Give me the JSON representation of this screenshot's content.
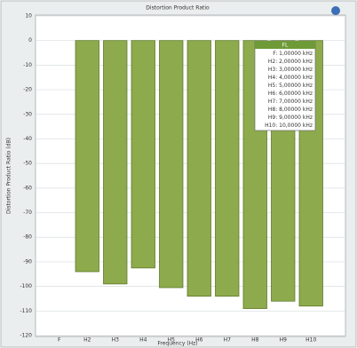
{
  "chart_data": {
    "type": "bar",
    "title": "Distortion Product Ratio",
    "x_label": "Frequency (Hz)",
    "y_label": "Distortion Product Ratio (dB)",
    "categories": [
      "F",
      "H2",
      "H3",
      "H4",
      "H5",
      "H6",
      "H7",
      "H8",
      "H9",
      "H10"
    ],
    "values": [
      0,
      -94,
      -99,
      -92.5,
      -100.5,
      -104,
      -104,
      -109,
      -106,
      -108
    ],
    "colors": [
      "#f3f7ec",
      "#8dab4c",
      "#8dab4c",
      "#8dab4c",
      "#8dab4c",
      "#8dab4c",
      "#8dab4c",
      "#8dab4c",
      "#8dab4c",
      "#8dab4c"
    ],
    "ylim": [
      -120,
      10
    ],
    "yticks": [
      10,
      0,
      -10,
      -20,
      -30,
      -40,
      -50,
      -60,
      -70,
      -80,
      -90,
      -100,
      -110,
      -120
    ],
    "grid": true,
    "legend": {
      "title": "FL",
      "entries": [
        "F: 1,00000 kHz",
        "H2: 2,00000 kHz",
        "H3: 3,00000 kHz",
        "H4: 4,00000 kHz",
        "H5: 5,00000 kHz",
        "H6: 6,00000 kHz",
        "H7: 7,00000 kHz",
        "H8: 8,00000 kHz",
        "H9: 9,00000 kHz",
        "H10: 10,0000 kHz"
      ]
    }
  }
}
